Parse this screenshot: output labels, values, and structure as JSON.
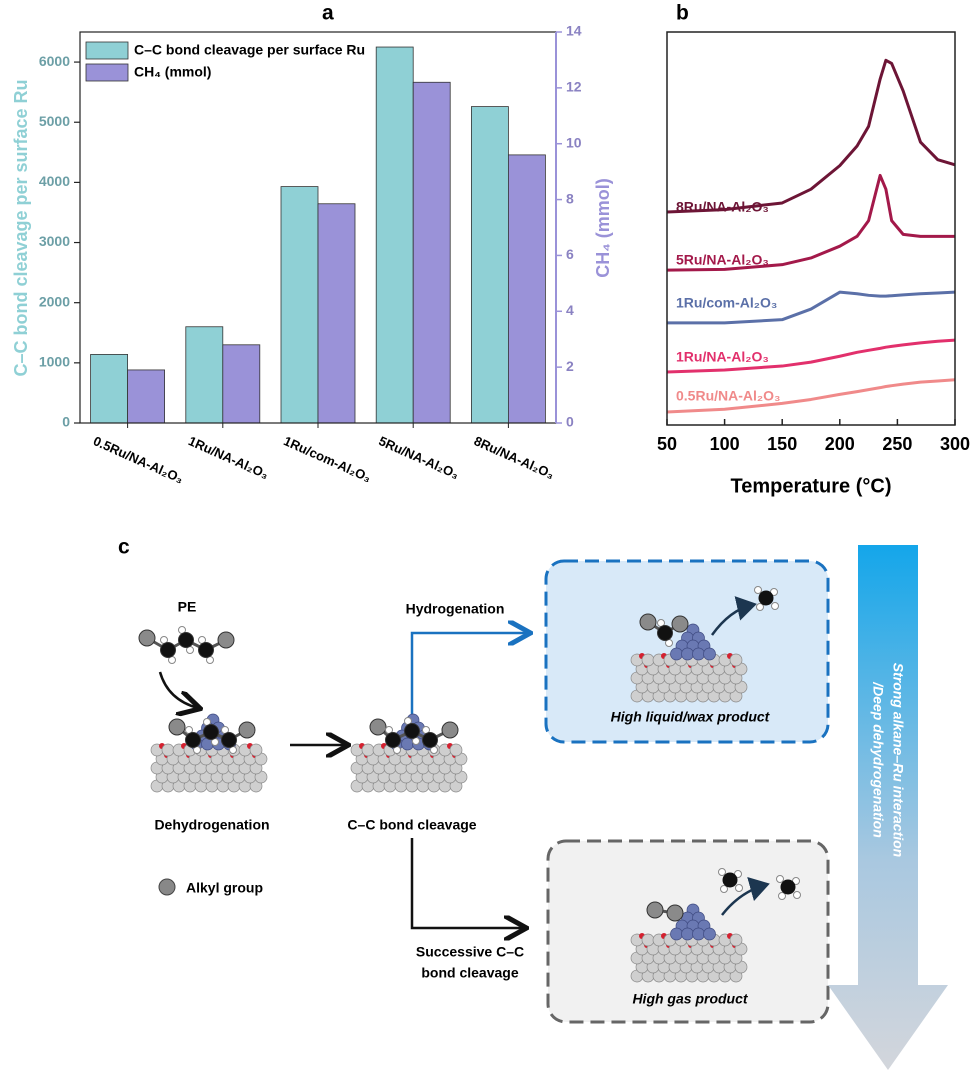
{
  "chart_data": [
    {
      "type": "bar",
      "label": "a",
      "categories": [
        "0.5Ru/NA-Al₂O₃",
        "1Ru/NA-Al₂O₃",
        "1Ru/com-Al₂O₃",
        "5Ru/NA-Al₂O₃",
        "8Ru/NA-Al₂O₃"
      ],
      "series": [
        {
          "name": "C–C bond cleavage per surface Ru",
          "color": "#8fd0d5",
          "values": [
            1140,
            1600,
            3930,
            6250,
            5260
          ]
        },
        {
          "name": "CH₄ (mmol)",
          "color": "#9a92d8",
          "axis": "y2",
          "values": [
            1.9,
            2.8,
            7.85,
            12.2,
            9.6
          ]
        }
      ],
      "ylabel": "C–C bond cleavage per surface Ru",
      "y2label": "CH₄ (mmol)",
      "ylim": [
        0,
        6500
      ],
      "yticks": [
        0,
        1000,
        2000,
        3000,
        4000,
        5000,
        6000
      ],
      "y2lim": [
        0,
        14
      ],
      "y2ticks": [
        0,
        2,
        4,
        6,
        8,
        10,
        12,
        14
      ],
      "legend": "upper left"
    },
    {
      "type": "line",
      "label": "b",
      "xlabel": "Temperature (°C)",
      "x": [
        50,
        100,
        150,
        175,
        200,
        215,
        225,
        235,
        240,
        245,
        255,
        270,
        285,
        300
      ],
      "xlim": [
        50,
        300
      ],
      "xticks": [
        50,
        100,
        150,
        200,
        250,
        300
      ],
      "ylim": [
        0,
        100
      ],
      "series": [
        {
          "name": "0.5Ru/NA-Al₂O₃",
          "color": "#f08a8a",
          "values": [
            3.3,
            4,
            5.5,
            6.5,
            7.8,
            8.5,
            9,
            9.5,
            9.8,
            10,
            10.4,
            10.9,
            11.2,
            11.5
          ]
        },
        {
          "name": "1Ru/NA-Al₂O₃",
          "color": "#e2306c",
          "values": [
            13.5,
            14,
            15,
            16,
            17.5,
            18.5,
            19,
            19.5,
            19.8,
            20,
            20.4,
            20.9,
            21.3,
            21.6
          ]
        },
        {
          "name": "1Ru/com-Al₂O₃",
          "color": "#5b70a8",
          "values": [
            26,
            26,
            26.8,
            29.5,
            33.8,
            33.4,
            33,
            32.8,
            32.8,
            32.9,
            33.1,
            33.4,
            33.6,
            33.8
          ]
        },
        {
          "name": "5Ru/NA-Al₂O₃",
          "color": "#a3194a",
          "values": [
            39.4,
            39.6,
            40.8,
            42.5,
            45.5,
            48,
            52,
            63.5,
            60,
            52,
            48.5,
            48,
            48,
            48
          ]
        },
        {
          "name": "8Ru/NA-Al₂O₃",
          "color": "#6d1536",
          "values": [
            54.2,
            54.8,
            56.5,
            60,
            66,
            71,
            76,
            88,
            92.8,
            92,
            85,
            72,
            67.5,
            66.2
          ]
        }
      ]
    }
  ],
  "diagram": {
    "label": "c",
    "start": "PE",
    "step1": "Dehydrogenation",
    "step2": "C–C bond cleavage",
    "path1": "Hydrogenation",
    "product1": "High liquid/wax product",
    "path2": [
      "Successive C–C",
      "bond cleavage"
    ],
    "product2": "High gas product",
    "legend": "Alkyl group",
    "trend": [
      "Strong alkane–Ru interaction",
      "/Deep dehydrogenation"
    ]
  }
}
